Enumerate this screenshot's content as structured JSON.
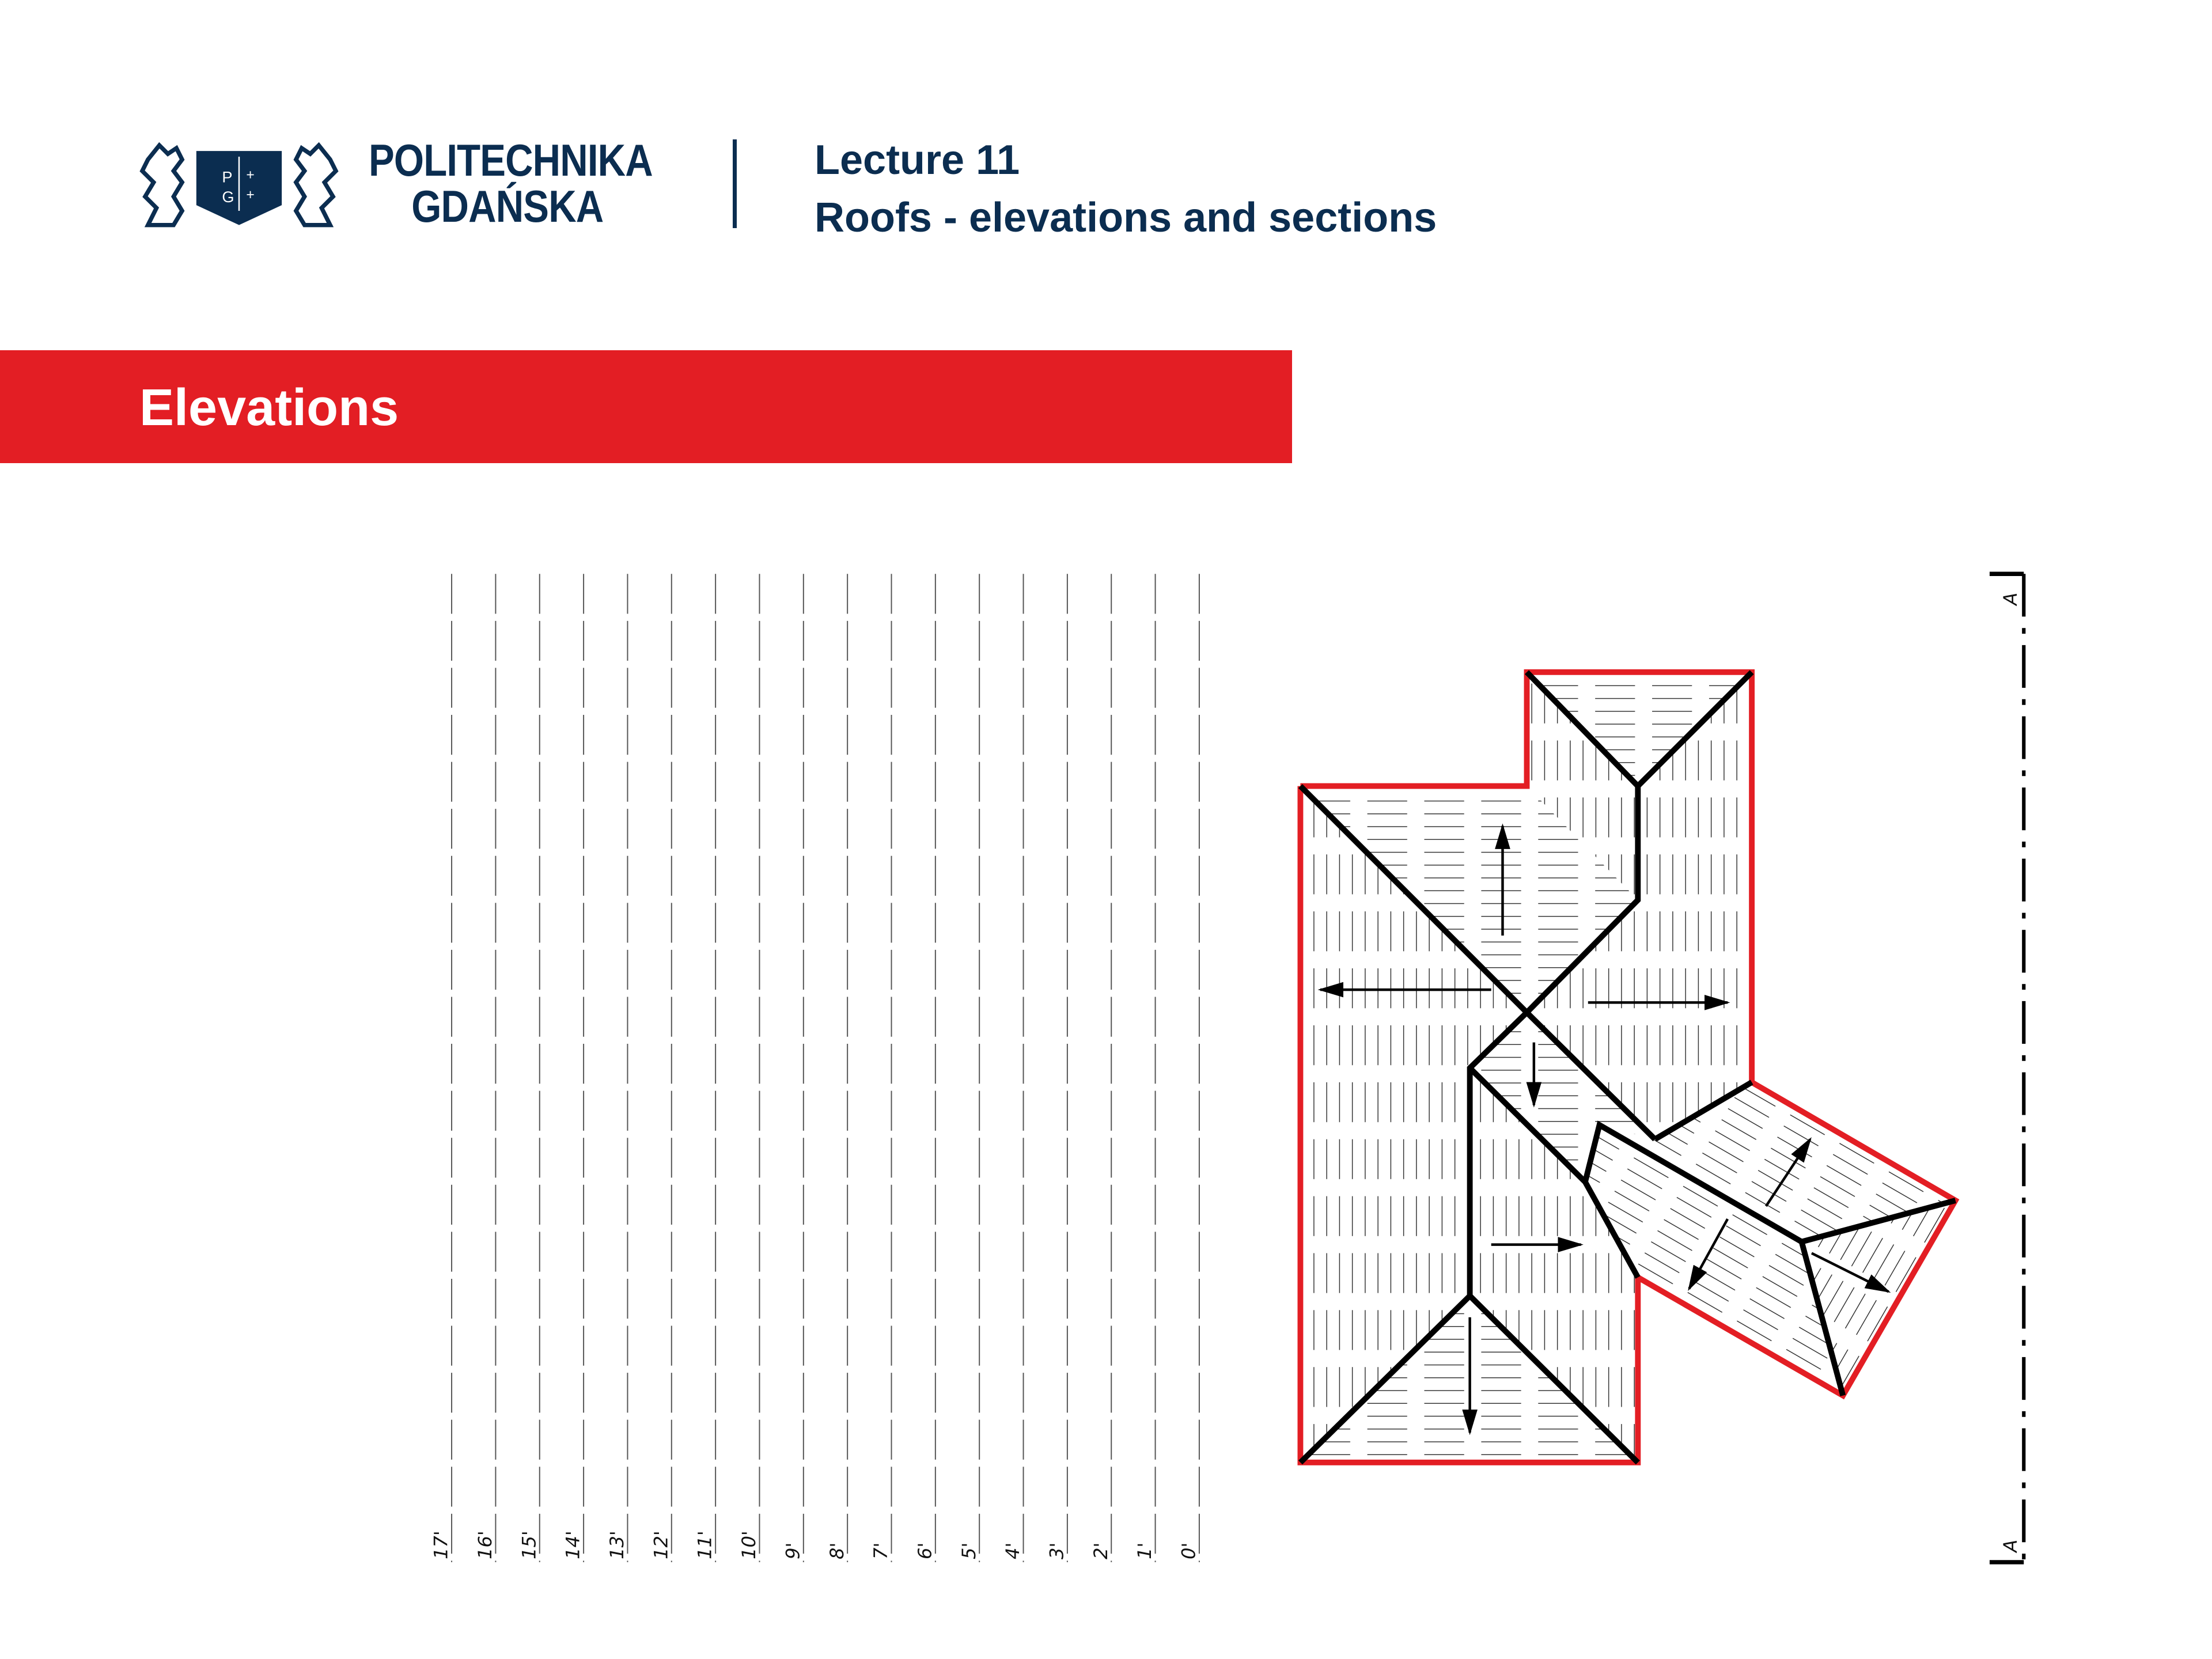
{
  "header": {
    "logo_text": "PG",
    "university_line1": "POLITECHNIKA",
    "university_line2": "GDAŃSKA",
    "lecture": "Lecture 11",
    "subtitle": "Roofs - elevations and sections"
  },
  "banner": {
    "title": "Elevations",
    "color": "#e31e24"
  },
  "drawing": {
    "height_lines": [
      "17'",
      "16'",
      "15'",
      "14'",
      "13'",
      "12'",
      "11'",
      "10'",
      "9'",
      "8'",
      "7'",
      "6'",
      "5'",
      "4'",
      "3'",
      "2'",
      "1'",
      "0'"
    ],
    "section_label_top": "A",
    "section_label_bottom": "A",
    "outline_color": "#e31e24",
    "ridge_color": "#000000"
  }
}
